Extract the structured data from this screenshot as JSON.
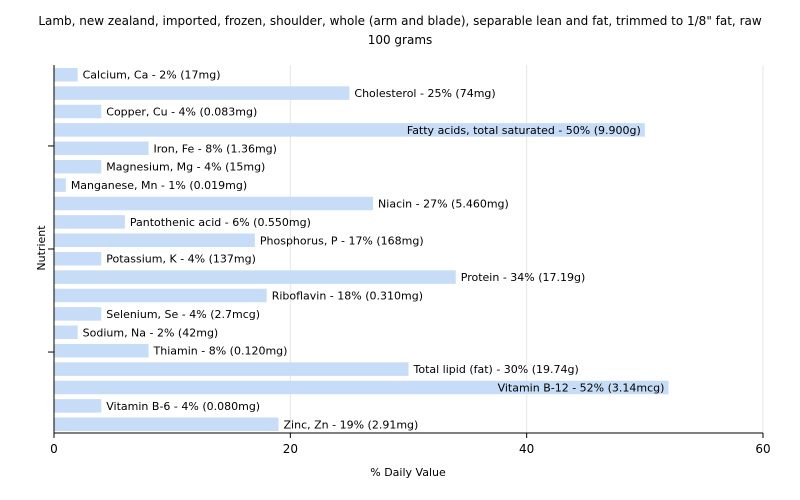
{
  "chart_data": {
    "type": "bar",
    "orientation": "horizontal",
    "title": "Lamb, new zealand, imported, frozen, shoulder, whole (arm and blade), separable lean and fat, trimmed to 1/8\" fat, raw",
    "subtitle": "100 grams",
    "xlabel": "% Daily Value",
    "ylabel": "Nutrient",
    "xlim": [
      0,
      60
    ],
    "xticks": [
      0,
      20,
      40,
      60
    ],
    "grid": true,
    "bar_color": "#c6dcf7",
    "categories": [
      "Calcium, Ca",
      "Cholesterol",
      "Copper, Cu",
      "Fatty acids, total saturated",
      "Iron, Fe",
      "Magnesium, Mg",
      "Manganese, Mn",
      "Niacin",
      "Pantothenic acid",
      "Phosphorus, P",
      "Potassium, K",
      "Protein",
      "Riboflavin",
      "Selenium, Se",
      "Sodium, Na",
      "Thiamin",
      "Total lipid (fat)",
      "Vitamin B-12",
      "Vitamin B-6",
      "Zinc, Zn"
    ],
    "values": [
      2,
      25,
      4,
      50,
      8,
      4,
      1,
      27,
      6,
      17,
      4,
      34,
      18,
      4,
      2,
      8,
      30,
      52,
      4,
      19
    ],
    "labels": [
      "Calcium, Ca - 2% (17mg)",
      "Cholesterol - 25% (74mg)",
      "Copper, Cu - 4% (0.083mg)",
      "Fatty acids, total saturated - 50% (9.900g)",
      "Iron, Fe - 8% (1.36mg)",
      "Magnesium, Mg - 4% (15mg)",
      "Manganese, Mn - 1% (0.019mg)",
      "Niacin - 27% (5.460mg)",
      "Pantothenic acid - 6% (0.550mg)",
      "Phosphorus, P - 17% (168mg)",
      "Potassium, K - 4% (137mg)",
      "Protein - 34% (17.19g)",
      "Riboflavin - 18% (0.310mg)",
      "Selenium, Se - 4% (2.7mcg)",
      "Sodium, Na - 2% (42mg)",
      "Thiamin - 8% (0.120mg)",
      "Total lipid (fat) - 30% (19.74g)",
      "Vitamin B-12 - 52% (3.14mcg)",
      "Vitamin B-6 - 4% (0.080mg)",
      "Zinc, Zn - 19% (2.91mg)"
    ]
  }
}
